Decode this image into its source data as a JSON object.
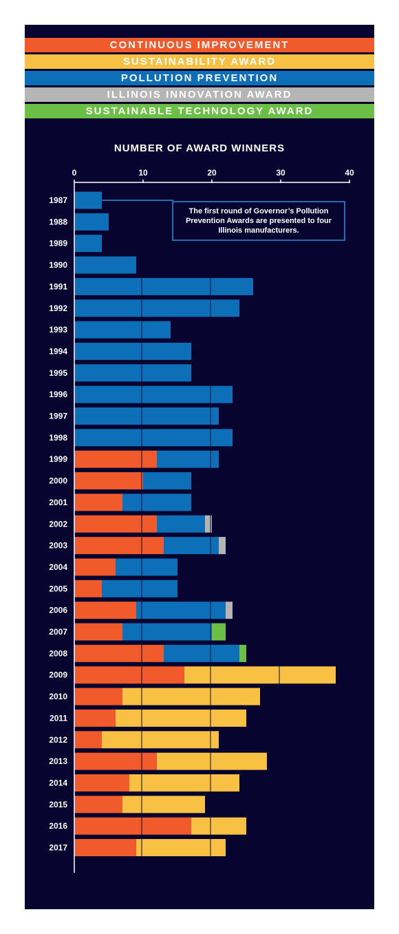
{
  "legend": [
    {
      "label": "CONTINUOUS IMPROVEMENT",
      "color": "#f15a2b"
    },
    {
      "label": "SUSTAINABILITY AWARD",
      "color": "#f8c143"
    },
    {
      "label": "POLLUTION PREVENTION",
      "color": "#0d6fb8"
    },
    {
      "label": "ILLINOIS INNOVATION AWARD",
      "color": "#b5b5b5"
    },
    {
      "label": "SUSTAINABLE TECHNOLOGY AWARD",
      "color": "#6bbf45"
    }
  ],
  "annotation": "The first round of Governor’s Pollution Prevention Awards are presented to four Illinois manufacturers.",
  "chart_data": {
    "type": "bar",
    "orientation": "horizontal",
    "stacked": true,
    "title": "",
    "xlabel": "NUMBER OF AWARD WINNERS",
    "ylabel": "",
    "xlim": [
      0,
      40
    ],
    "xticks": [
      0,
      10,
      20,
      30,
      40
    ],
    "grid": "vertical lines at 10, 20, 30 drawn over bars",
    "legend_position": "top",
    "categories": [
      "1987",
      "1988",
      "1989",
      "1990",
      "1991",
      "1992",
      "1993",
      "1994",
      "1995",
      "1996",
      "1997",
      "1998",
      "1999",
      "2000",
      "2001",
      "2002",
      "2003",
      "2004",
      "2005",
      "2006",
      "2007",
      "2008",
      "2009",
      "2010",
      "2011",
      "2012",
      "2013",
      "2014",
      "2015",
      "2016",
      "2017"
    ],
    "series": [
      {
        "name": "CONTINUOUS IMPROVEMENT",
        "color": "#f15a2b",
        "values": [
          0,
          0,
          0,
          0,
          0,
          0,
          0,
          0,
          0,
          0,
          0,
          0,
          12,
          10,
          7,
          12,
          13,
          6,
          4,
          9,
          7,
          13,
          16,
          7,
          6,
          4,
          12,
          8,
          7,
          17,
          9
        ]
      },
      {
        "name": "SUSTAINABILITY AWARD",
        "color": "#f8c143",
        "values": [
          0,
          0,
          0,
          0,
          0,
          0,
          0,
          0,
          0,
          0,
          0,
          0,
          0,
          0,
          0,
          0,
          0,
          0,
          0,
          0,
          0,
          0,
          22,
          20,
          19,
          17,
          16,
          16,
          12,
          8,
          13
        ]
      },
      {
        "name": "POLLUTION PREVENTION",
        "color": "#0d6fb8",
        "values": [
          4,
          5,
          4,
          9,
          26,
          24,
          14,
          17,
          17,
          23,
          21,
          23,
          9,
          7,
          10,
          7,
          8,
          9,
          11,
          13,
          13,
          11,
          0,
          0,
          0,
          0,
          0,
          0,
          0,
          0,
          0
        ]
      },
      {
        "name": "ILLINOIS INNOVATION AWARD",
        "color": "#b5b5b5",
        "values": [
          0,
          0,
          0,
          0,
          0,
          0,
          0,
          0,
          0,
          0,
          0,
          0,
          0,
          0,
          0,
          1,
          1,
          0,
          0,
          1,
          0,
          0,
          0,
          0,
          0,
          0,
          0,
          0,
          0,
          0,
          0
        ]
      },
      {
        "name": "SUSTAINABLE TECHNOLOGY AWARD",
        "color": "#6bbf45",
        "values": [
          0,
          0,
          0,
          0,
          0,
          0,
          0,
          0,
          0,
          0,
          0,
          0,
          0,
          0,
          0,
          0,
          0,
          0,
          0,
          0,
          2,
          1,
          0,
          0,
          0,
          0,
          0,
          0,
          0,
          0,
          0
        ]
      }
    ]
  }
}
